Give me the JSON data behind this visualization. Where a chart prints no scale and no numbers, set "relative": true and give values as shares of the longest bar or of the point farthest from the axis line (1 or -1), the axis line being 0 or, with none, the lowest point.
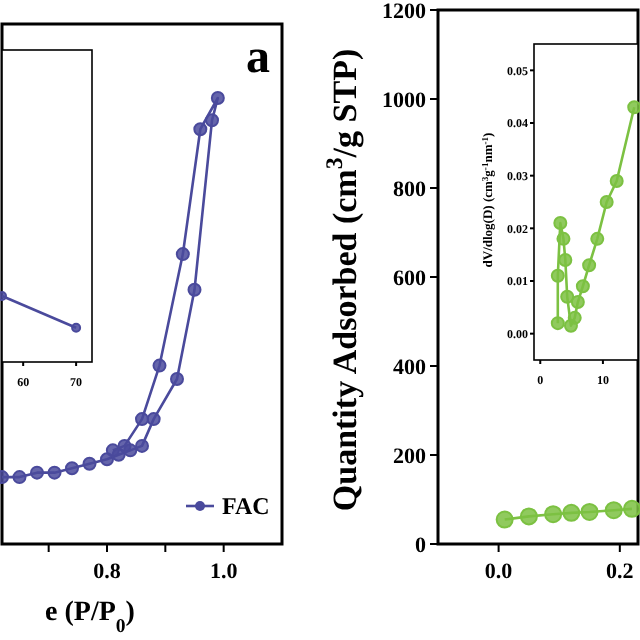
{
  "chart_data": [
    {
      "type": "line",
      "xlabel": "e (P/P$_{0}$)",
      "relative": true,
      "xlim": [
        0.62,
        1.1
      ],
      "xticks": [
        {
          "value": 0.7,
          "label": null
        },
        {
          "value": 0.8,
          "label": "0.8"
        },
        {
          "value": 0.9,
          "label": null
        },
        {
          "value": 1.0,
          "label": "1.0"
        }
      ],
      "tick_labels": "x",
      "marker": "circle",
      "legend": "bottom right",
      "annotations": [
        "a"
      ],
      "series": [
        {
          "name": "FAC",
          "color": "#4a4a9c",
          "x": [
            0.62,
            0.65,
            0.68,
            0.71,
            0.74,
            0.77,
            0.8,
            0.82,
            0.84,
            0.86,
            0.88,
            0.92,
            0.95,
            0.98,
            0.99,
            0.96,
            0.93,
            0.89,
            0.86,
            0.83,
            0.81
          ],
          "values": [
            0.15,
            0.15,
            0.16,
            0.16,
            0.17,
            0.18,
            0.19,
            0.2,
            0.21,
            0.22,
            0.28,
            0.37,
            0.57,
            0.95,
            1.0,
            0.93,
            0.65,
            0.4,
            0.28,
            0.22,
            0.21
          ]
        }
      ]
    },
    {
      "type": "line",
      "relative": true,
      "xlim": [
        56,
        73
      ],
      "xticks": [
        60,
        70
      ],
      "tick_labels": "x",
      "marker": "circle",
      "series": [
        {
          "color": "#4a4a9c",
          "x": [
            56,
            70
          ],
          "values": [
            1,
            0.52
          ]
        }
      ]
    },
    {
      "type": "line",
      "ylabel": "Quantity Adsorbed (cm$^{3}$/g STP)",
      "xlim": [
        -0.1,
        0.23
      ],
      "xticks": [
        {
          "value": 0,
          "label": "0.0"
        },
        {
          "value": 0.2,
          "label": "0.2"
        }
      ],
      "ylim": [
        0,
        1200
      ],
      "yticks": [
        0,
        200,
        400,
        600,
        800,
        1000,
        1200
      ],
      "marker": "circle",
      "series": [
        {
          "color": "#7cc142",
          "x": [
            0.01,
            0.05,
            0.09,
            0.12,
            0.15,
            0.19,
            0.22
          ],
          "values": [
            55,
            62,
            67,
            70,
            72,
            76,
            79
          ]
        }
      ]
    },
    {
      "type": "line",
      "ylabel": "dV/dlog(D) (cm$^{3}$g$^{-1}$nm$^{-1}$)",
      "xlim": [
        -1,
        15.6
      ],
      "xticks": [
        0,
        10
      ],
      "ylim": [
        -0.005,
        0.055
      ],
      "yticks": [
        {
          "value": 0,
          "label": "0.00"
        },
        {
          "value": 0.01,
          "label": "0.01"
        },
        {
          "value": 0.02,
          "label": "0.02"
        },
        {
          "value": 0.03,
          "label": "0.03"
        },
        {
          "value": 0.04,
          "label": "0.04"
        },
        {
          "value": 0.05,
          "label": "0.05"
        }
      ],
      "marker": "circle",
      "series": [
        {
          "color": "#7cc142",
          "x": [
            2.8,
            2.8,
            3.2,
            3.7,
            4.0,
            4.3,
            4.9,
            5.5,
            6.0,
            6.8,
            7.8,
            9.1,
            10.6,
            12.2,
            15.0
          ],
          "values": [
            0.002,
            0.011,
            0.021,
            0.018,
            0.014,
            0.007,
            0.0015,
            0.003,
            0.006,
            0.009,
            0.013,
            0.018,
            0.025,
            0.029,
            0.043
          ]
        }
      ]
    }
  ]
}
